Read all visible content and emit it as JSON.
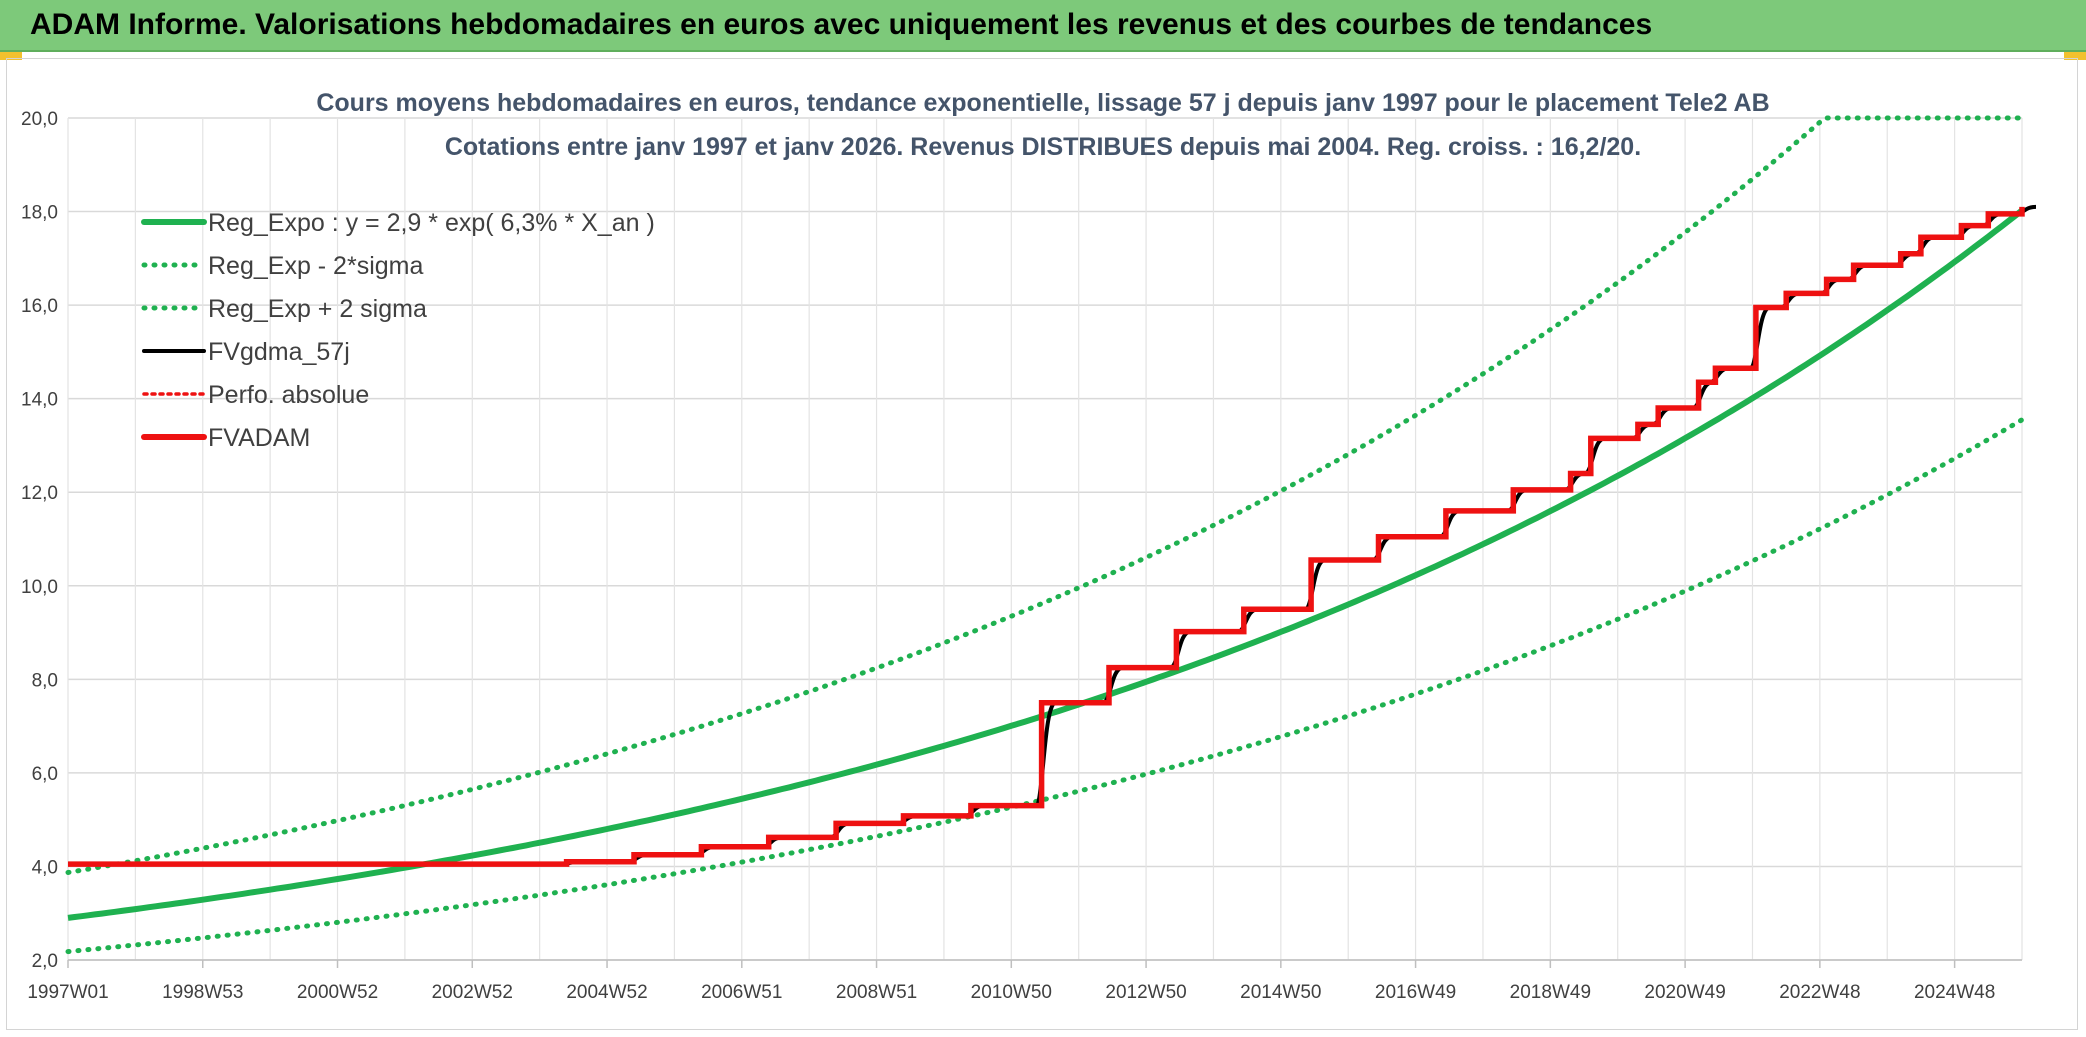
{
  "header": {
    "title": "ADAM Informe. Valorisations hebdomadaires en euros avec uniquement les revenus et des courbes de tendances"
  },
  "colors": {
    "header_bg": "#7dc97a",
    "trend": "#1fb150",
    "band": "#1fb150",
    "fv": "#000000",
    "adam": "#ee1111",
    "perf": "#ee1111"
  },
  "chart_data": {
    "type": "line",
    "title": "Cours moyens hebdomadaires en euros, tendance exponentielle, lissage 57 j depuis janv 1997 pour le placement Tele2 AB",
    "subtitle": "Cotations entre janv 1997 et janv 2026. Revenus DISTRIBUES depuis mai 2004. Reg. croiss. : 16,2/20.",
    "ylim": [
      2,
      20
    ],
    "yticks": [
      "2,0",
      "4,0",
      "6,0",
      "8,0",
      "10,0",
      "12,0",
      "14,0",
      "16,0",
      "18,0",
      "20,0"
    ],
    "xlim": [
      1997.0,
      2026.0
    ],
    "xticks": [
      {
        "label": "1997W01",
        "x": 1997.0
      },
      {
        "label": "1998W53",
        "x": 1999.0
      },
      {
        "label": "2000W52",
        "x": 2001.0
      },
      {
        "label": "2002W52",
        "x": 2003.0
      },
      {
        "label": "2004W52",
        "x": 2005.0
      },
      {
        "label": "2006W51",
        "x": 2007.0
      },
      {
        "label": "2008W51",
        "x": 2009.0
      },
      {
        "label": "2010W50",
        "x": 2011.0
      },
      {
        "label": "2012W50",
        "x": 2013.0
      },
      {
        "label": "2014W50",
        "x": 2015.0
      },
      {
        "label": "2016W49",
        "x": 2017.0
      },
      {
        "label": "2018W49",
        "x": 2019.0
      },
      {
        "label": "2020W49",
        "x": 2021.0
      },
      {
        "label": "2022W48",
        "x": 2023.0
      },
      {
        "label": "2024W48",
        "x": 2025.0
      }
    ],
    "grid": true,
    "legend_position": "top-left",
    "series": [
      {
        "name": "Reg_Expo : y = 2,9 * exp( 6,3% *  X_an )",
        "style": "trend",
        "a": 2.9,
        "r": 0.063
      },
      {
        "name": "Reg_Exp - 2*sigma",
        "style": "band",
        "a": 2.18,
        "r": 0.063
      },
      {
        "name": "Reg_Exp + 2 sigma",
        "style": "band",
        "a": 3.87,
        "r": 0.063,
        "cap": 20
      },
      {
        "name": "FVgdma_57j",
        "style": "fv"
      },
      {
        "name": "Perfo. absolue",
        "style": "perf"
      },
      {
        "name": "FVADAM",
        "style": "adam",
        "steps": [
          [
            1997.0,
            4.05
          ],
          [
            2004.4,
            4.1
          ],
          [
            2005.4,
            4.25
          ],
          [
            2006.4,
            4.42
          ],
          [
            2007.4,
            4.62
          ],
          [
            2008.4,
            4.92
          ],
          [
            2009.4,
            5.08
          ],
          [
            2010.4,
            5.3
          ],
          [
            2011.45,
            7.5
          ],
          [
            2012.45,
            8.25
          ],
          [
            2013.45,
            9.02
          ],
          [
            2014.45,
            9.5
          ],
          [
            2015.45,
            10.55
          ],
          [
            2016.45,
            11.05
          ],
          [
            2017.45,
            11.6
          ],
          [
            2018.45,
            12.05
          ],
          [
            2019.3,
            12.4
          ],
          [
            2019.6,
            13.15
          ],
          [
            2020.3,
            13.45
          ],
          [
            2020.6,
            13.8
          ],
          [
            2021.2,
            14.35
          ],
          [
            2021.45,
            14.65
          ],
          [
            2022.05,
            15.95
          ],
          [
            2022.5,
            16.25
          ],
          [
            2023.1,
            16.55
          ],
          [
            2023.5,
            16.85
          ],
          [
            2024.2,
            17.1
          ],
          [
            2024.5,
            17.45
          ],
          [
            2025.1,
            17.7
          ],
          [
            2025.5,
            17.95
          ],
          [
            2026.0,
            18.1
          ]
        ]
      }
    ]
  }
}
